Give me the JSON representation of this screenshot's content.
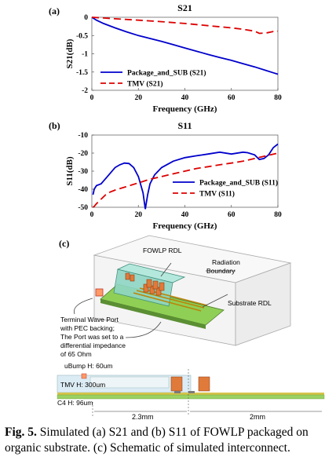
{
  "chart_data": [
    {
      "type": "line",
      "panel": "(a)",
      "title": "S21",
      "xlabel": "Frequency (GHz)",
      "ylabel": "S21(dB)",
      "xlim": [
        0,
        80
      ],
      "ylim": [
        -2,
        0
      ],
      "xticks": [
        0,
        20,
        40,
        60,
        80
      ],
      "yticks": [
        0,
        -0.5,
        -1,
        -1.5,
        -2
      ],
      "grid": false,
      "legend": "bottom-left",
      "series": [
        {
          "name": "Package_and_SUB (S21)",
          "color": "#0000cc",
          "style": "solid",
          "x": [
            0,
            2,
            5,
            10,
            15,
            20,
            25,
            30,
            35,
            40,
            45,
            50,
            55,
            60,
            65,
            70,
            75,
            78,
            80
          ],
          "y": [
            0,
            -0.08,
            -0.17,
            -0.29,
            -0.4,
            -0.5,
            -0.58,
            -0.66,
            -0.75,
            -0.84,
            -0.93,
            -1.02,
            -1.1,
            -1.18,
            -1.27,
            -1.36,
            -1.46,
            -1.52,
            -1.56
          ]
        },
        {
          "name": "TMV (S21)",
          "color": "#dd0000",
          "style": "dashed",
          "x": [
            0,
            5,
            10,
            20,
            30,
            40,
            50,
            60,
            65,
            70,
            72,
            75,
            78,
            80
          ],
          "y": [
            0,
            -0.02,
            -0.04,
            -0.08,
            -0.12,
            -0.17,
            -0.23,
            -0.29,
            -0.33,
            -0.38,
            -0.44,
            -0.43,
            -0.39,
            -0.38
          ]
        }
      ]
    },
    {
      "type": "line",
      "panel": "(b)",
      "title": "S11",
      "xlabel": "Frequency (GHz)",
      "ylabel": "S11(dB)",
      "xlim": [
        0,
        80
      ],
      "ylim": [
        -50,
        -10
      ],
      "xticks": [
        0,
        20,
        40,
        60,
        80
      ],
      "yticks": [
        -10,
        -20,
        -30,
        -40,
        -50
      ],
      "grid": false,
      "legend": "bottom-right",
      "series": [
        {
          "name": "Package_and_SUB (S11)",
          "color": "#0000cc",
          "style": "solid",
          "x": [
            0.5,
            1,
            2,
            4,
            6,
            8,
            10,
            12,
            14,
            16,
            18,
            20,
            22,
            23,
            24,
            25,
            27,
            30,
            35,
            40,
            45,
            50,
            55,
            60,
            65,
            67,
            70,
            72,
            74,
            76,
            78,
            80
          ],
          "y": [
            -43,
            -40,
            -38,
            -37,
            -34,
            -31,
            -28,
            -26.5,
            -25.5,
            -25.8,
            -28,
            -33,
            -42,
            -51,
            -43,
            -37,
            -32,
            -28,
            -24.5,
            -22.5,
            -21.5,
            -20.5,
            -19.5,
            -20.5,
            -19.5,
            -19.8,
            -21,
            -23.5,
            -23,
            -21,
            -17,
            -15
          ]
        },
        {
          "name": "TMV (S11)",
          "color": "#dd0000",
          "style": "dashed",
          "x": [
            0.5,
            1,
            2,
            4,
            6,
            8,
            10,
            15,
            20,
            25,
            30,
            35,
            40,
            45,
            50,
            55,
            60,
            65,
            70,
            75,
            80
          ],
          "y": [
            -50,
            -49.5,
            -48,
            -45.5,
            -43,
            -41.5,
            -40.5,
            -38.5,
            -36.5,
            -34.5,
            -33,
            -31.5,
            -30,
            -28.5,
            -27.5,
            -26.5,
            -25.5,
            -24.5,
            -23,
            -21.5,
            -20
          ]
        }
      ]
    }
  ],
  "schematic": {
    "panel": "(c)",
    "labels": {
      "fowlp_rdl": "FOWLP RDL",
      "radiation_1": "Radiation",
      "radiation_2": "Boundary",
      "substrate_rdl": "Substrate RDL",
      "port_1": "Terminal Wave Port",
      "port_2": "with PEC backing;",
      "port_3": "The Port was set to a",
      "port_4": "differential impedance",
      "port_5": "of 65 Ohm",
      "ubump": "uBump H: 60um",
      "tmv": "TMV H: 300um",
      "c4": "C4 H: 96um",
      "dim_left": "2.3mm",
      "dim_right": "2mm"
    }
  },
  "caption": {
    "fig": "Fig. 5.",
    "text": " Simulated (a) S21 and (b) S11 of FOWLP packaged on organic substrate. (c) Schematic of simulated interconnect."
  }
}
